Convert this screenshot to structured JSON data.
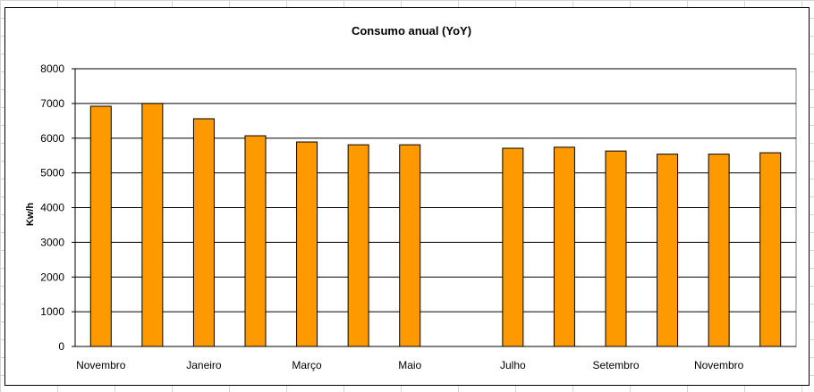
{
  "chart_data": {
    "type": "bar",
    "title": "Consumo anual (YoY)",
    "xlabel": "",
    "ylabel": "Kw/h",
    "ylim": [
      0,
      8000
    ],
    "yticks": [
      0,
      1000,
      2000,
      3000,
      4000,
      5000,
      6000,
      7000,
      8000
    ],
    "grid": "horizontal",
    "legend": "none",
    "bar_color": "#FF9900",
    "categories": [
      "Novembro",
      "",
      "Janeiro",
      "",
      "Março",
      "",
      "Maio",
      "",
      "Julho",
      "",
      "Setembro",
      "",
      "Novembro",
      ""
    ],
    "values": [
      6920,
      7000,
      6560,
      6070,
      5890,
      5810,
      5810,
      null,
      5710,
      5740,
      5630,
      5540,
      5540,
      5580
    ]
  }
}
